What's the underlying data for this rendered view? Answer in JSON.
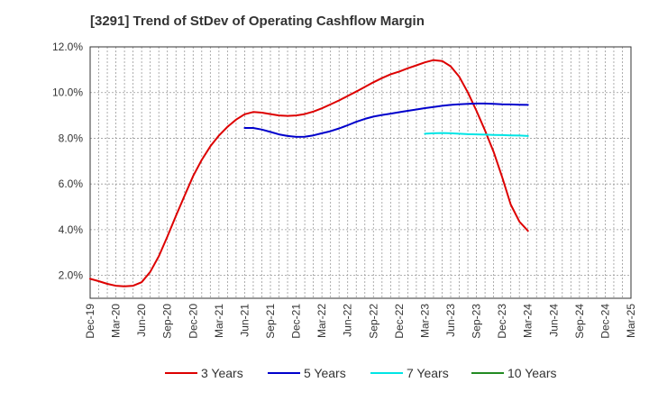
{
  "chart_data": {
    "type": "line",
    "title": "[3291]  Trend of StDev of Operating Cashflow Margin",
    "xlabel": "",
    "ylabel": "",
    "ylim": [
      1.0,
      12.0
    ],
    "y_ticks": [
      "2.0%",
      "4.0%",
      "6.0%",
      "8.0%",
      "10.0%",
      "12.0%"
    ],
    "y_tick_values": [
      2.0,
      4.0,
      6.0,
      8.0,
      10.0,
      12.0
    ],
    "x_tick_labels": [
      "Dec-19",
      "Mar-20",
      "Jun-20",
      "Sep-20",
      "Dec-20",
      "Mar-21",
      "Jun-21",
      "Sep-21",
      "Dec-21",
      "Mar-22",
      "Jun-22",
      "Sep-22",
      "Dec-22",
      "Mar-23",
      "Jun-23",
      "Sep-23",
      "Dec-23",
      "Mar-24",
      "Jun-24",
      "Sep-24",
      "Dec-24",
      "Mar-25"
    ],
    "grid": true,
    "legend_position": "bottom",
    "series": [
      {
        "name": "3 Years",
        "color": "#dd0000",
        "points": [
          [
            0,
            1.85
          ],
          [
            0.33,
            1.75
          ],
          [
            0.67,
            1.63
          ],
          [
            1,
            1.55
          ],
          [
            1.33,
            1.52
          ],
          [
            1.67,
            1.55
          ],
          [
            2,
            1.7
          ],
          [
            2.33,
            2.15
          ],
          [
            2.67,
            2.85
          ],
          [
            3,
            3.7
          ],
          [
            3.33,
            4.6
          ],
          [
            3.67,
            5.5
          ],
          [
            4,
            6.35
          ],
          [
            4.33,
            7.05
          ],
          [
            4.67,
            7.65
          ],
          [
            5,
            8.12
          ],
          [
            5.33,
            8.5
          ],
          [
            5.67,
            8.82
          ],
          [
            6,
            9.05
          ],
          [
            6.33,
            9.15
          ],
          [
            6.67,
            9.12
          ],
          [
            7,
            9.06
          ],
          [
            7.33,
            9.0
          ],
          [
            7.67,
            8.98
          ],
          [
            8,
            9.0
          ],
          [
            8.33,
            9.06
          ],
          [
            8.67,
            9.17
          ],
          [
            9,
            9.31
          ],
          [
            9.33,
            9.48
          ],
          [
            9.67,
            9.66
          ],
          [
            10,
            9.85
          ],
          [
            10.33,
            10.04
          ],
          [
            10.67,
            10.25
          ],
          [
            11,
            10.45
          ],
          [
            11.33,
            10.63
          ],
          [
            11.67,
            10.8
          ],
          [
            12,
            10.92
          ],
          [
            12.33,
            11.06
          ],
          [
            12.67,
            11.19
          ],
          [
            13,
            11.32
          ],
          [
            13.33,
            11.42
          ],
          [
            13.67,
            11.38
          ],
          [
            14,
            11.15
          ],
          [
            14.33,
            10.7
          ],
          [
            14.67,
            10.0
          ],
          [
            15,
            9.2
          ],
          [
            15.33,
            8.35
          ],
          [
            15.67,
            7.4
          ],
          [
            16,
            6.3
          ],
          [
            16.33,
            5.1
          ],
          [
            16.67,
            4.35
          ],
          [
            17,
            3.95
          ]
        ]
      },
      {
        "name": "5 Years",
        "color": "#0000cc",
        "points": [
          [
            6,
            8.45
          ],
          [
            6.33,
            8.45
          ],
          [
            6.67,
            8.38
          ],
          [
            7,
            8.28
          ],
          [
            7.33,
            8.17
          ],
          [
            7.67,
            8.1
          ],
          [
            8,
            8.06
          ],
          [
            8.33,
            8.07
          ],
          [
            8.67,
            8.13
          ],
          [
            9,
            8.22
          ],
          [
            9.33,
            8.31
          ],
          [
            9.67,
            8.43
          ],
          [
            10,
            8.57
          ],
          [
            10.33,
            8.72
          ],
          [
            10.67,
            8.85
          ],
          [
            11,
            8.95
          ],
          [
            11.33,
            9.02
          ],
          [
            11.67,
            9.08
          ],
          [
            12,
            9.14
          ],
          [
            12.33,
            9.2
          ],
          [
            12.67,
            9.26
          ],
          [
            13,
            9.32
          ],
          [
            13.33,
            9.37
          ],
          [
            13.67,
            9.42
          ],
          [
            14,
            9.46
          ],
          [
            14.33,
            9.49
          ],
          [
            14.67,
            9.51
          ],
          [
            15,
            9.52
          ],
          [
            15.33,
            9.52
          ],
          [
            15.67,
            9.51
          ],
          [
            16,
            9.49
          ],
          [
            16.33,
            9.48
          ],
          [
            16.67,
            9.47
          ],
          [
            17,
            9.46
          ]
        ]
      },
      {
        "name": "7 Years",
        "color": "#00e5e5",
        "points": [
          [
            13,
            8.2
          ],
          [
            13.33,
            8.22
          ],
          [
            13.67,
            8.23
          ],
          [
            14,
            8.22
          ],
          [
            14.33,
            8.2
          ],
          [
            14.67,
            8.18
          ],
          [
            15,
            8.17
          ],
          [
            15.33,
            8.16
          ],
          [
            15.67,
            8.15
          ],
          [
            16,
            8.14
          ],
          [
            16.33,
            8.13
          ],
          [
            16.67,
            8.12
          ],
          [
            17,
            8.1
          ]
        ]
      },
      {
        "name": "10 Years",
        "color": "#228b22",
        "points": []
      }
    ]
  }
}
